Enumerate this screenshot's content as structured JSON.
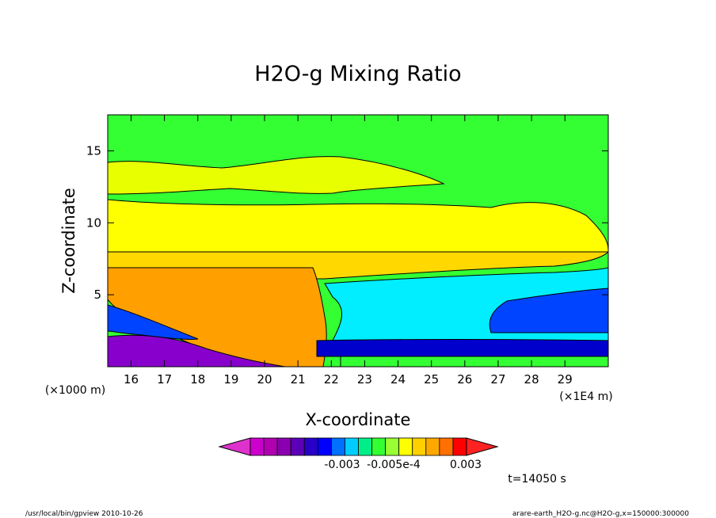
{
  "chart_data": {
    "type": "heatmap",
    "title": "H2O-g Mixing Ratio",
    "xlabel": "X-coordinate",
    "ylabel": "Z-coordinate",
    "x_unit_left": "(×1000 m)",
    "x_unit_right": "(×1E4 m)",
    "x_ticks": [
      "16",
      "17",
      "18",
      "19",
      "20",
      "21",
      "22",
      "23",
      "24",
      "25",
      "26",
      "27",
      "28",
      "29"
    ],
    "y_ticks": [
      "5",
      "10",
      "15"
    ],
    "xlim": [
      15.3,
      30.3
    ],
    "ylim": [
      0,
      17.5
    ],
    "colorbar": {
      "labels": [
        "-0.003",
        "-0.005e-4",
        "0.003"
      ],
      "colors": [
        "#cc00cc",
        "#b000b0",
        "#8a00b0",
        "#5c00b8",
        "#2800c8",
        "#0000ff",
        "#0070ff",
        "#00ccff",
        "#00ee88",
        "#33ff33",
        "#99ff33",
        "#ffff00",
        "#ffd000",
        "#ffa800",
        "#ff7000",
        "#ff0000"
      ]
    },
    "time_label": "t=14050 s",
    "regions": [
      {
        "name": "background",
        "color": "#33ff33"
      },
      {
        "name": "upper-moist-band",
        "color": "#e8ff00"
      },
      {
        "name": "upper-yellow-band",
        "color": "#ffff00"
      },
      {
        "name": "mid-yellow-band",
        "color": "#ffd800"
      },
      {
        "name": "left-orange-region",
        "color": "#ffa000"
      },
      {
        "name": "right-cyan-region",
        "color": "#00eeff"
      },
      {
        "name": "right-blue-region",
        "color": "#0044ff"
      },
      {
        "name": "lower-left-purple",
        "color": "#8800cc"
      }
    ]
  },
  "footer": {
    "left": "/usr/local/bin/gpview  2010-10-26",
    "right": "arare-earth_H2O-g.nc@H2O-g,x=150000:300000"
  }
}
